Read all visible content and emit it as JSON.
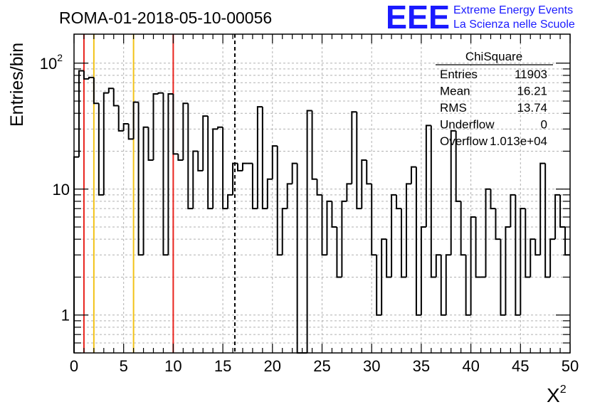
{
  "header": {
    "run_title": "ROMA-01-2018-05-10-00056",
    "logo_text": "EEE",
    "logo_line1": "Extreme Energy Events",
    "logo_line2": "La Scienza nelle Scuole",
    "brand_color": "#1a1aff"
  },
  "stats": {
    "title": "ChiSquare",
    "rows": [
      {
        "label": "Entries",
        "value": "11903"
      },
      {
        "label": "Mean",
        "value": "16.21"
      },
      {
        "label": "RMS",
        "value": "13.74"
      },
      {
        "label": "Underflow",
        "value": "0"
      },
      {
        "label": "Overflow",
        "value": "1.013e+04"
      }
    ]
  },
  "chart_data": {
    "type": "histogram",
    "xlabel": "X",
    "xlabel_sup": "2",
    "ylabel": "Entries/bin",
    "xlim": [
      0,
      50
    ],
    "ylim": [
      0.5,
      170
    ],
    "y_scale": "log",
    "grid": true,
    "x_ticks": [
      "0",
      "5",
      "10",
      "15",
      "20",
      "25",
      "30",
      "35",
      "40",
      "45",
      "50"
    ],
    "y_ticks": [
      {
        "value": 1,
        "label": "1",
        "sup": ""
      },
      {
        "value": 10,
        "label": "10",
        "sup": ""
      },
      {
        "value": 100,
        "label": "10",
        "sup": "2"
      }
    ],
    "bin_width": 0.5,
    "values": [
      18,
      87,
      75,
      77,
      48,
      9,
      58,
      63,
      46,
      29,
      33,
      25,
      49,
      3,
      31,
      17,
      57,
      58,
      3,
      57,
      19,
      17,
      48,
      7,
      20,
      14,
      38,
      7,
      30,
      31,
      7,
      9,
      16,
      14,
      16,
      16,
      7,
      45,
      7,
      12,
      22,
      3,
      7,
      11,
      16,
      0,
      0,
      42,
      12,
      9,
      3,
      8,
      5,
      2,
      8,
      11,
      41,
      7,
      17,
      11,
      3,
      1,
      4,
      2,
      9,
      7,
      2,
      11,
      15,
      1,
      5,
      32,
      2,
      3,
      1,
      3,
      29,
      8,
      3,
      1,
      6,
      2,
      2,
      10,
      7,
      4,
      1,
      5,
      9,
      1,
      7,
      2,
      4,
      3,
      16,
      2,
      4,
      9,
      5,
      3
    ],
    "vlines": [
      {
        "x": 1,
        "color": "#e8231d",
        "style": "solid"
      },
      {
        "x": 2,
        "color": "#f2c318",
        "style": "solid"
      },
      {
        "x": 6,
        "color": "#f2c318",
        "style": "solid"
      },
      {
        "x": 10,
        "color": "#e8231d",
        "style": "solid"
      },
      {
        "x": 16.21,
        "color": "#000000",
        "style": "dashed"
      }
    ]
  }
}
